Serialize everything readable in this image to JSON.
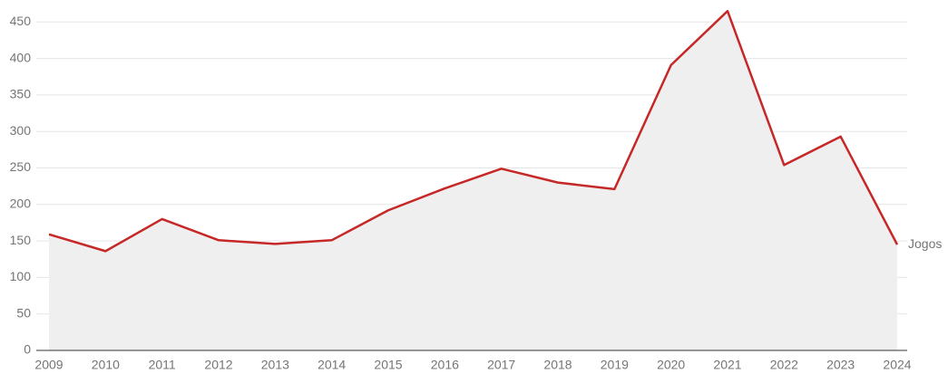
{
  "chart_data": {
    "type": "line",
    "categories": [
      "2009",
      "2010",
      "2011",
      "2012",
      "2013",
      "2014",
      "2015",
      "2016",
      "2017",
      "2018",
      "2019",
      "2020",
      "2021",
      "2022",
      "2023",
      "2024"
    ],
    "series": [
      {
        "name": "Jogos",
        "color": "#c62828",
        "area_color": "#efefef",
        "values": [
          159,
          136,
          180,
          151,
          146,
          151,
          192,
          222,
          249,
          230,
          221,
          391,
          465,
          254,
          293,
          145
        ]
      }
    ],
    "ylim": [
      0,
      470
    ],
    "yticks": [
      0,
      50,
      100,
      150,
      200,
      250,
      300,
      350,
      400,
      450
    ],
    "grid": true
  }
}
